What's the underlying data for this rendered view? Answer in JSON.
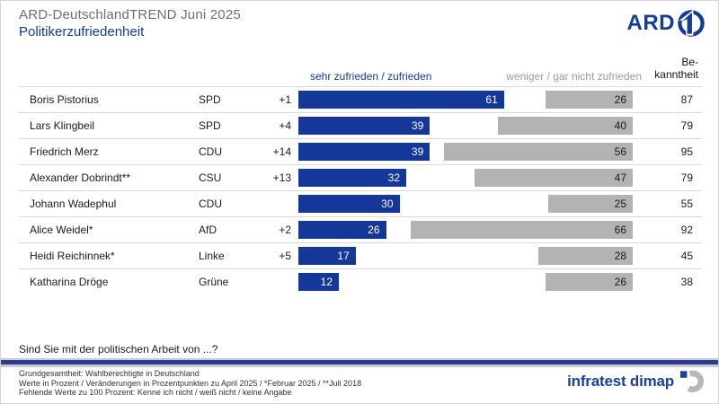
{
  "header": {
    "title": "ARD-DeutschlandTREND Juni 2025",
    "subtitle": "Politikerzufriedenheit",
    "ard_logo_text": "ARD"
  },
  "chart_data": {
    "type": "bar",
    "orientation": "horizontal",
    "title": "Politikerzufriedenheit",
    "unit": "Prozent",
    "xlim": [
      0,
      100
    ],
    "columns": {
      "satisfied": "sehr zufrieden / zufrieden",
      "unsatisfied": "weniger / gar nicht zufrieden",
      "awareness_line1": "Be-",
      "awareness_line2": "kanntheit"
    },
    "series": [
      {
        "key": "satisfied",
        "name": "sehr zufrieden / zufrieden",
        "color": "#14389a"
      },
      {
        "key": "unsatisfied",
        "name": "weniger / gar nicht zufrieden",
        "color": "#b3b3b3"
      }
    ],
    "rows": [
      {
        "name": "Boris Pistorius",
        "party": "SPD",
        "change": "+1",
        "satisfied": 61,
        "unsatisfied": 26,
        "bekanntheit": 87
      },
      {
        "name": "Lars Klingbeil",
        "party": "SPD",
        "change": "+4",
        "satisfied": 39,
        "unsatisfied": 40,
        "bekanntheit": 79
      },
      {
        "name": "Friedrich Merz",
        "party": "CDU",
        "change": "+14",
        "satisfied": 39,
        "unsatisfied": 56,
        "bekanntheit": 95
      },
      {
        "name": "Alexander Dobrindt**",
        "party": "CSU",
        "change": "+13",
        "satisfied": 32,
        "unsatisfied": 47,
        "bekanntheit": 79
      },
      {
        "name": "Johann Wadephul",
        "party": "CDU",
        "change": "",
        "satisfied": 30,
        "unsatisfied": 25,
        "bekanntheit": 55
      },
      {
        "name": "Alice Weidel*",
        "party": "AfD",
        "change": "+2",
        "satisfied": 26,
        "unsatisfied": 66,
        "bekanntheit": 92
      },
      {
        "name": "Heidi Reichinnek*",
        "party": "Linke",
        "change": "+5",
        "satisfied": 17,
        "unsatisfied": 28,
        "bekanntheit": 45
      },
      {
        "name": "Katharina Dröge",
        "party": "Grüne",
        "change": "",
        "satisfied": 12,
        "unsatisfied": 26,
        "bekanntheit": 38
      }
    ]
  },
  "footer": {
    "question": "Sind Sie mit der politischen Arbeit von ...?",
    "notes": [
      "Grundgesamtheit: Wahlberechtigte in Deutschland",
      "Werte in Prozent / Veränderungen in Prozentpunkten zu April 2025 / *Februar 2025 / **Juli 2018",
      "Fehlende Werte zu 100 Prozent: Kenne ich nicht / weiß nicht / keine Angabe"
    ],
    "brand": "infratest dimap"
  },
  "colors": {
    "accent_blue": "#143a9c",
    "bar_blue": "#14389a",
    "bar_gray": "#b3b3b3",
    "divider_navy": "#2e3b8e",
    "title_gray": "#6e6e6e",
    "column_gray": "#9b9b9b"
  }
}
